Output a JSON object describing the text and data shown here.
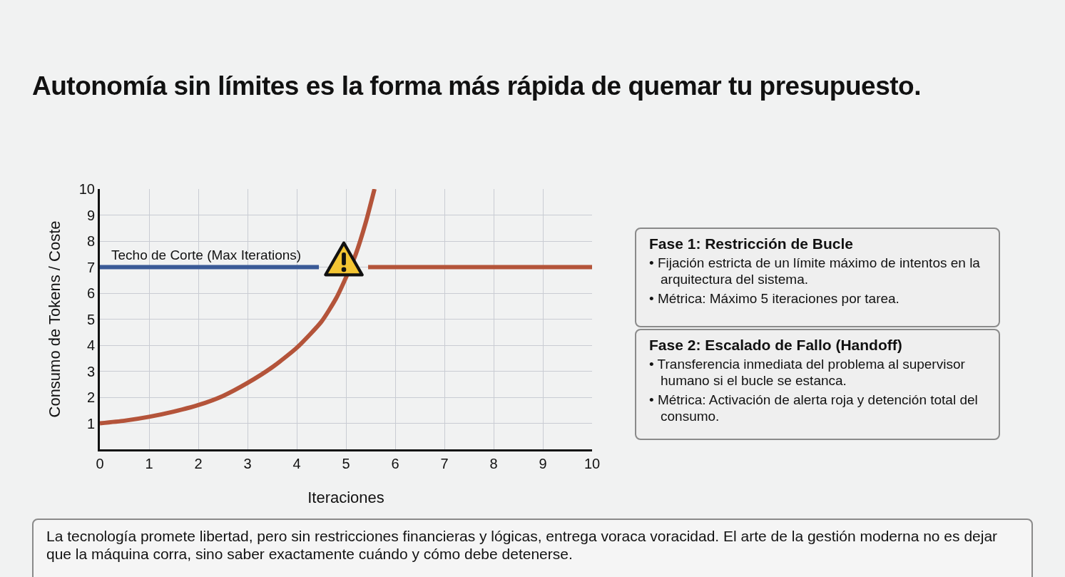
{
  "chart_data": {
    "type": "line",
    "title": "Autonomía sin límites es la forma más rápida de quemar tu presupuesto.",
    "xlabel": "Iteraciones",
    "ylabel": "Consumo de Tokens / Coste",
    "series": [
      {
        "color": "#b4543a",
        "x": [
          0,
          0.5,
          1,
          1.5,
          2,
          2.5,
          3,
          3.5,
          4,
          4.5,
          4.8,
          5,
          5.2,
          5.4,
          5.58
        ],
        "values": [
          1.0,
          1.1,
          1.25,
          1.45,
          1.7,
          2.05,
          2.55,
          3.15,
          3.9,
          4.9,
          5.8,
          6.6,
          7.5,
          8.7,
          10
        ]
      },
      {
        "color": "#3a5a97",
        "x": [
          0,
          4.45
        ],
        "values": [
          7,
          7
        ]
      },
      {
        "color": "#b4543a",
        "x": [
          5.45,
          10
        ],
        "values": [
          7,
          7
        ]
      }
    ],
    "annotations": [
      {
        "text": "Techo de Corte (Max Iterations)",
        "x": 0.2,
        "y": 7
      },
      "Fase 1: Restricción de Bucle",
      "• Fijación estricta de un límite máximo de intentos en la arquitectura del sistema.",
      "• Métrica: Máximo 5 iteraciones por tarea.",
      "Fase 2: Escalado de Fallo (Handoff)",
      "• Transferencia inmediata del problema al supervisor humano si el bucle se estanca.",
      "• Métrica: Activación de alerta roja y detención total del consumo.",
      "La tecnología promete libertad, pero sin restricciones financieras y lógicas, entrega voraca voracidad. El arte de la gestión moderna no es dejar que la máquina corra, sino saber exactamente cuándo y cómo debe detenerse."
    ],
    "xlim": [
      0,
      10
    ],
    "ylim": [
      0,
      10
    ],
    "xticks": [
      0,
      1,
      2,
      3,
      4,
      5,
      6,
      7,
      8,
      9,
      10
    ],
    "yticks": [
      {
        "value": 0,
        "label": null
      },
      1,
      2,
      3,
      4,
      5,
      6,
      7,
      8,
      9,
      10
    ],
    "grid": true,
    "marker": "none",
    "line_style": "solid"
  }
}
